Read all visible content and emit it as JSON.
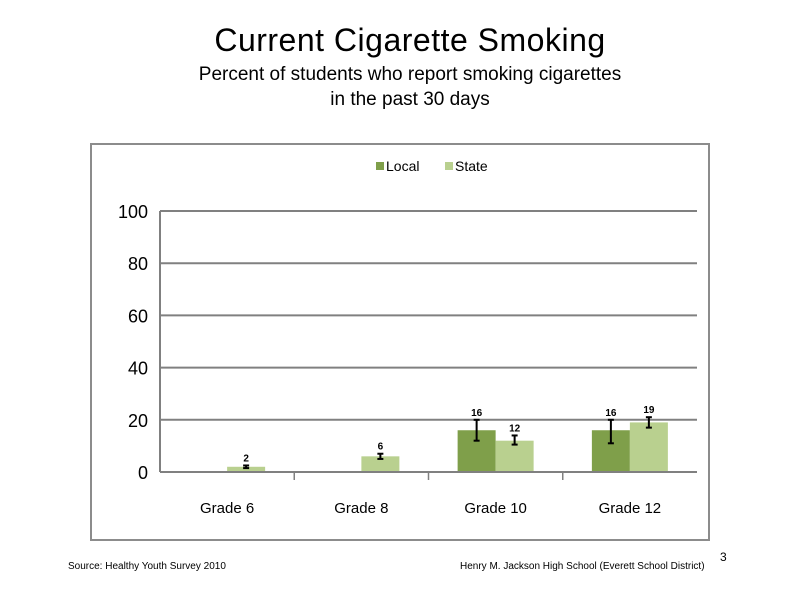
{
  "slide": {
    "title": "Current Cigarette Smoking",
    "subtitle_line1": "Percent of students who report smoking cigarettes",
    "subtitle_line2": "in the past 30 days",
    "source": "Source: Healthy Youth Survey 2010",
    "school": "Henry M. Jackson High School (Everett School District)",
    "page_number": "3"
  },
  "colors": {
    "local": "#7f9f4a",
    "state": "#b9d08f",
    "grid": "#808080",
    "axis": "#808080"
  },
  "chart_data": {
    "type": "bar",
    "categories": [
      "Grade 6",
      "Grade 8",
      "Grade 10",
      "Grade 12"
    ],
    "series": [
      {
        "name": "Local",
        "values": [
          null,
          null,
          16,
          16
        ],
        "error_low": [
          null,
          null,
          12,
          11
        ],
        "error_high": [
          null,
          null,
          20,
          20
        ]
      },
      {
        "name": "State",
        "values": [
          2,
          6,
          12,
          19
        ],
        "error_low": [
          1.5,
          5,
          10.5,
          17
        ],
        "error_high": [
          2.5,
          7,
          14,
          21
        ]
      }
    ],
    "ylim": [
      0,
      100
    ],
    "yticks": [
      0,
      20,
      40,
      60,
      80,
      100
    ],
    "legend_position": "top-center",
    "grid": true,
    "data_labels": true
  }
}
